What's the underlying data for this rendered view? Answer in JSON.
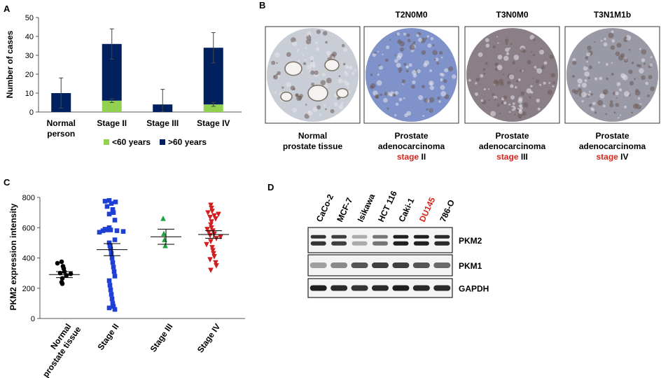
{
  "panels": {
    "A": {
      "letter": "A",
      "chart_data": {
        "type": "bar",
        "stacked": true,
        "ylabel": "Number of cases",
        "ylim": [
          0,
          50
        ],
        "yticks": [
          "0",
          "10",
          "20",
          "30",
          "40",
          "50"
        ],
        "categories": [
          "Normal\nperson",
          "Stage II",
          "Stage III",
          "Stage IV"
        ],
        "series": [
          {
            "name": "<60 years",
            "color": "#92d050",
            "values": [
              0,
              6,
              0,
              4
            ]
          },
          {
            "name": ">60 years",
            "color": "#002060",
            "values": [
              10,
              30,
              4,
              30
            ]
          }
        ],
        "error_bars": [
          {
            "base": 10,
            "low": 2,
            "high": 18
          },
          {
            "base": 6,
            "low": 5,
            "high": 7
          },
          {
            "base": 36,
            "low": 28,
            "high": 44
          },
          {
            "base": 4,
            "low": 0,
            "high": 12
          },
          {
            "base": 4,
            "low": 3,
            "high": 5
          },
          {
            "base": 34,
            "low": 26,
            "high": 42
          }
        ],
        "legend_position": "bottom"
      }
    },
    "B": {
      "letter": "B",
      "columns": [
        {
          "header": "",
          "caption_lines": [
            "Normal",
            "prostate tissue"
          ],
          "stage_word": "",
          "stage_num": "",
          "tint": "#c9cdd6"
        },
        {
          "header": "T2N0M0",
          "caption_lines": [
            "Prostate",
            "adenocarcinoma"
          ],
          "stage_word": "stage",
          "stage_num": " II",
          "tint": "#7f92c9"
        },
        {
          "header": "T3N0M0",
          "caption_lines": [
            "Prostate",
            "adenocarcinoma"
          ],
          "stage_word": "stage",
          "stage_num": " III",
          "tint": "#8a7f86"
        },
        {
          "header": "T3N1M1b",
          "caption_lines": [
            "Prostate",
            "adenocarcinoma"
          ],
          "stage_word": "stage",
          "stage_num": " IV",
          "tint": "#9a9aa6"
        }
      ],
      "stage_color": "#d9261c"
    },
    "C": {
      "letter": "C",
      "chart_data": {
        "type": "scatter",
        "ylabel": "PKM2 expression intensity",
        "ylim": [
          0,
          800
        ],
        "yticks": [
          "0",
          "200",
          "400",
          "600",
          "800"
        ],
        "categories": [
          "Normal\nprostate tissue",
          "Stage II",
          "Stage III",
          "Stage IV"
        ],
        "series": [
          {
            "marker": "circle",
            "color": "#000000",
            "mean": 290,
            "sem": 20,
            "values": [
              375,
              365,
              345,
              330,
              310,
              300,
              295,
              285,
              265,
              240,
              230
            ]
          },
          {
            "marker": "square",
            "color": "#1d3fd6",
            "mean": 455,
            "sem": 40,
            "values": [
              780,
              775,
              770,
              760,
              740,
              720,
              700,
              690,
              650,
              600,
              590,
              585,
              585,
              580,
              580,
              575,
              570,
              520,
              500,
              480,
              460,
              430,
              400,
              370,
              340,
              310,
              280,
              250,
              220,
              190,
              160,
              130,
              100,
              80,
              70,
              60
            ]
          },
          {
            "marker": "triangle-up",
            "color": "#1aa33c",
            "mean": 540,
            "sem": 50,
            "values": [
              660,
              560,
              520,
              480
            ]
          },
          {
            "marker": "triangle-down",
            "color": "#d11f1f",
            "mean": 555,
            "sem": 25,
            "values": [
              750,
              730,
              710,
              700,
              690,
              680,
              670,
              660,
              640,
              620,
              600,
              590,
              580,
              570,
              560,
              550,
              540,
              530,
              510,
              490,
              470,
              450,
              430,
              410,
              390,
              370,
              350,
              320
            ]
          }
        ]
      }
    },
    "D": {
      "letter": "D",
      "lanes": [
        "CaCo-2",
        "MCF-7",
        "Isikawa",
        "HCT 116",
        "Caki-1",
        "DU145",
        "786-O"
      ],
      "highlight_lane": "DU145",
      "highlight_color": "#d9261c",
      "blots": [
        {
          "label": "PKM2",
          "intensity": [
            0.85,
            0.8,
            0.3,
            0.55,
            0.95,
            0.95,
            0.9
          ],
          "double": true
        },
        {
          "label": "PKM1",
          "intensity": [
            0.35,
            0.45,
            0.7,
            0.8,
            0.8,
            0.7,
            0.6
          ],
          "double": false
        },
        {
          "label": "GAPDH",
          "intensity": [
            0.95,
            0.9,
            0.85,
            0.9,
            0.95,
            0.9,
            0.9
          ],
          "double": false
        }
      ]
    }
  }
}
